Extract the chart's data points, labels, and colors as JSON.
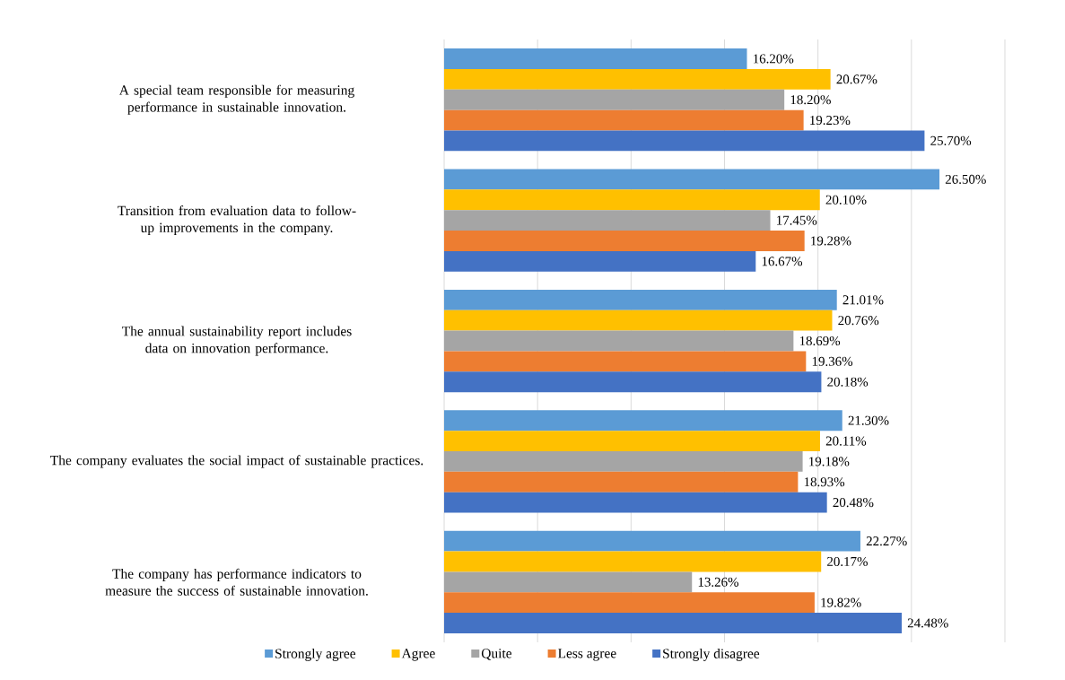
{
  "chart_data": {
    "type": "bar",
    "orientation": "horizontal",
    "categories": [
      "A special team responsible for measuring performance in sustainable innovation.",
      "Transition from evaluation data to follow-up improvements in the company.",
      "The annual sustainability report includes data on innovation performance.",
      "The company evaluates the social impact of sustainable practices.",
      "The company has performance indicators to measure the success of sustainable innovation."
    ],
    "series": [
      {
        "name": "Strongly agree",
        "color": "#5b9bd5",
        "values": [
          16.2,
          26.5,
          21.01,
          21.3,
          22.27
        ],
        "value_labels": [
          "16.20%",
          "26.50%",
          "21.01%",
          "21.30%",
          "22.27%"
        ]
      },
      {
        "name": "Agree",
        "color": "#ffc000",
        "values": [
          20.67,
          20.1,
          20.76,
          20.11,
          20.17
        ],
        "value_labels": [
          "20.67%",
          "20.10%",
          "20.76%",
          "20.11%",
          "20.17%"
        ]
      },
      {
        "name": "Quite",
        "color": "#a5a5a5",
        "values": [
          18.2,
          17.45,
          18.69,
          19.18,
          13.26
        ],
        "value_labels": [
          "18.20%",
          "17.45%",
          "18.69%",
          "19.18%",
          "13.26%"
        ]
      },
      {
        "name": "Less agree",
        "color": "#ed7d31",
        "values": [
          19.23,
          19.28,
          19.36,
          18.93,
          19.82
        ],
        "value_labels": [
          "19.23%",
          "19.28%",
          "19.36%",
          "18.93%",
          "19.82%"
        ]
      },
      {
        "name": "Strongly disagree",
        "color": "#4472c4",
        "values": [
          25.7,
          16.67,
          20.18,
          20.48,
          24.48
        ],
        "value_labels": [
          "25.70%",
          "16.67%",
          "20.18%",
          "20.48%",
          "24.48%"
        ]
      }
    ],
    "xlim": [
      0,
      30
    ],
    "xticks": [
      {
        "value": 0,
        "label": null
      },
      {
        "value": 5,
        "label": null
      },
      {
        "value": 10,
        "label": null
      },
      {
        "value": 15,
        "label": null
      },
      {
        "value": 20,
        "label": null
      },
      {
        "value": 25,
        "label": null
      },
      {
        "value": 30,
        "label": null
      }
    ],
    "tick_labels": "y",
    "grid": "x",
    "legend": "bottom"
  }
}
